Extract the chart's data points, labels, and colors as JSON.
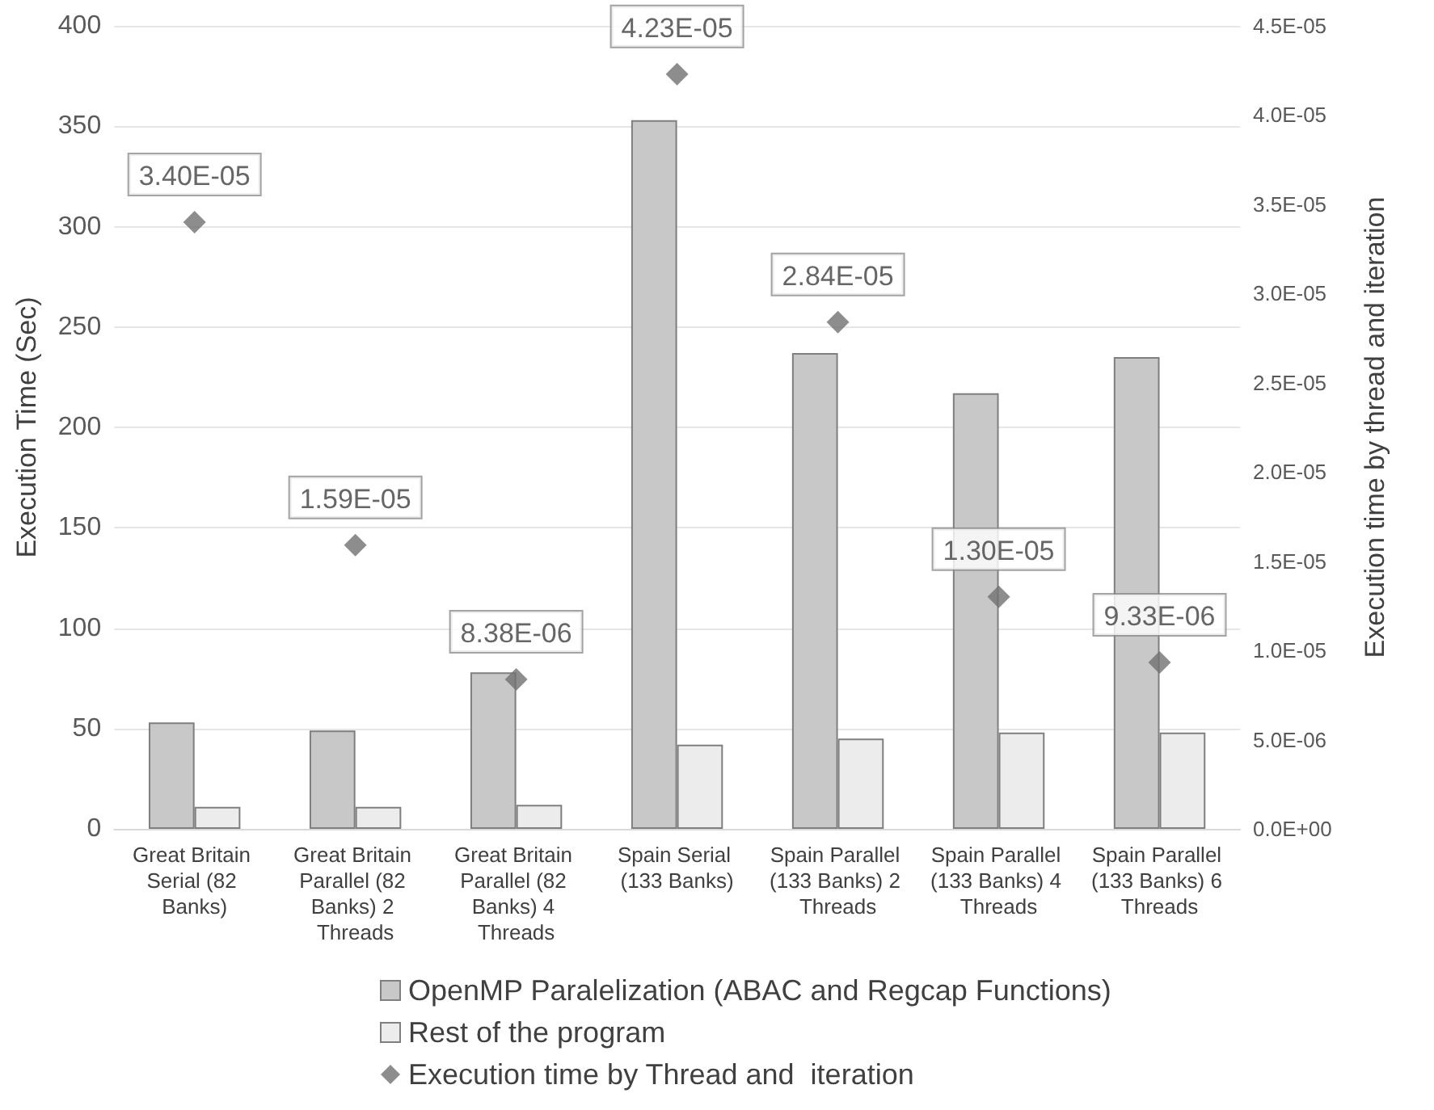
{
  "chart_data": {
    "type": "bar",
    "categories": [
      "Great Britain Serial (82 Banks)",
      "Great Britain Parallel (82 Banks) 2 Threads",
      "Great Britain Parallel (82 Banks) 4 Threads",
      "Spain Serial (133 Banks)",
      "Spain Parallel (133 Banks) 2 Threads",
      "Spain Parallel (133 Banks) 4 Threads",
      "Spain Parallel (133 Banks) 6 Threads"
    ],
    "series": [
      {
        "name": "OpenMP Paralelization (ABAC and Regcap Functions)",
        "color": "#c8c8c8",
        "values": [
          53,
          49,
          78,
          353,
          237,
          217,
          235
        ]
      },
      {
        "name": "Rest of the program",
        "color": "#ececec",
        "values": [
          11,
          11,
          12,
          42,
          45,
          48,
          48
        ]
      },
      {
        "name": "Execution time by Thread and  iteration",
        "type": "scatter",
        "axis": "y2",
        "color": "#707070",
        "marker": "diamond",
        "values": [
          3.4e-05,
          1.59e-05,
          8.38e-06,
          4.23e-05,
          2.84e-05,
          1.3e-05,
          9.33e-06
        ],
        "value_labels": [
          "3.40E-05",
          "1.59E-05",
          "8.38E-06",
          "4.23E-05",
          "2.84E-05",
          "1.30E-05",
          "9.33E-06"
        ]
      }
    ],
    "ylabel": "Execution Time (Sec)",
    "y2label": "Execution time by thread and iteration",
    "ylim": [
      0,
      400
    ],
    "yticks": [
      0,
      50,
      100,
      150,
      200,
      250,
      300,
      350,
      400
    ],
    "y2lim": [
      0,
      4.5e-05
    ],
    "y2ticks": [
      {
        "value": 0,
        "label": "0.0E+00"
      },
      {
        "value": 5e-06,
        "label": "5.0E-06"
      },
      {
        "value": 1e-05,
        "label": "1.0E-05"
      },
      {
        "value": 1.5e-05,
        "label": "1.5E-05"
      },
      {
        "value": 2e-05,
        "label": "2.0E-05"
      },
      {
        "value": 2.5e-05,
        "label": "2.5E-05"
      },
      {
        "value": 3e-05,
        "label": "3.0E-05"
      },
      {
        "value": 3.5e-05,
        "label": "3.5E-05"
      },
      {
        "value": 4e-05,
        "label": "4.0E-05"
      },
      {
        "value": 4.5e-05,
        "label": "4.5E-05"
      }
    ],
    "grid": "y",
    "legend": "bottom"
  }
}
